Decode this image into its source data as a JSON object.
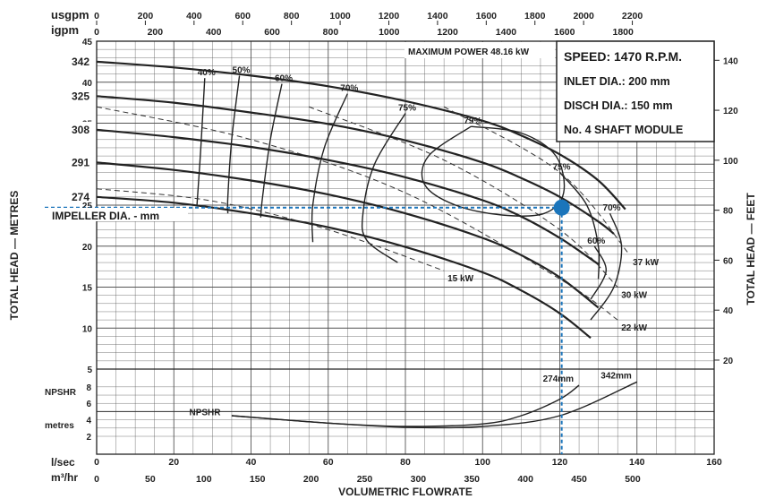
{
  "chart_data": {
    "type": "line",
    "title": "",
    "axes": {
      "x_lsec": {
        "label": "l/sec",
        "ticks": [
          0,
          20,
          40,
          60,
          80,
          100,
          120,
          140,
          160
        ]
      },
      "x_m3hr": {
        "label": "m³/hr",
        "ticks": [
          0,
          50,
          100,
          150,
          200,
          250,
          300,
          350,
          400,
          450,
          500
        ]
      },
      "x_usgpm": {
        "label": "usgpm",
        "ticks": [
          0,
          200,
          400,
          600,
          800,
          1000,
          1200,
          1400,
          1600,
          1800,
          2000,
          2200
        ]
      },
      "x_igpm": {
        "label": "igpm",
        "ticks": [
          0,
          200,
          400,
          600,
          800,
          1000,
          1200,
          1400,
          1600,
          1800
        ]
      },
      "x_title": "VOLUMETRIC FLOWRATE",
      "y_left": {
        "label": "TOTAL HEAD — METRES",
        "ticks": [
          5,
          10,
          15,
          20,
          25,
          30,
          35,
          40,
          45
        ],
        "range": [
          5,
          45
        ]
      },
      "y_right": {
        "label": "TOTAL HEAD — FEET",
        "ticks": [
          20,
          40,
          60,
          80,
          100,
          120,
          140
        ]
      },
      "npshr": {
        "label_top": "NPSHR",
        "label_bottom": "metres",
        "ticks": [
          2,
          4,
          6,
          8
        ]
      }
    },
    "grid": true,
    "info": {
      "speed": "SPEED: 1470 R.P.M.",
      "inlet": "INLET DIA.: 200 mm",
      "disch": "DISCH DIA.: 150 mm",
      "module": "No. 4 SHAFT MODULE",
      "max_power": "MAXIMUM POWER 48.16 kW"
    },
    "impeller_label": "IMPELLER DIA. - mm",
    "head_curves": [
      {
        "name": "342",
        "x": [
          0,
          20,
          40,
          60,
          80,
          100,
          110,
          120,
          130,
          137
        ],
        "y": [
          42.5,
          41.8,
          40.8,
          39.5,
          37.7,
          35.3,
          33.5,
          31.2,
          28.0,
          24.5
        ]
      },
      {
        "name": "325",
        "x": [
          0,
          20,
          40,
          60,
          80,
          100,
          110,
          120,
          130,
          134
        ],
        "y": [
          38.3,
          37.5,
          36.3,
          34.9,
          32.9,
          30.2,
          28.3,
          26.0,
          23.0,
          21.5
        ]
      },
      {
        "name": "308",
        "x": [
          0,
          20,
          40,
          60,
          80,
          100,
          110,
          120,
          130
        ],
        "y": [
          34.2,
          33.3,
          32.1,
          30.5,
          28.4,
          25.6,
          23.6,
          21.0,
          17.8
        ]
      },
      {
        "name": "291",
        "x": [
          0,
          20,
          40,
          60,
          80,
          100,
          110,
          120,
          130
        ],
        "y": [
          30.2,
          29.3,
          28.0,
          26.3,
          24.0,
          21.0,
          18.9,
          16.2,
          12.5
        ]
      },
      {
        "name": "274",
        "x": [
          0,
          20,
          40,
          60,
          80,
          100,
          110,
          120,
          128
        ],
        "y": [
          26.0,
          25.3,
          24.0,
          22.3,
          19.9,
          16.8,
          14.6,
          11.8,
          8.8
        ]
      }
    ],
    "efficiency_contours": [
      {
        "label": "40%",
        "x": [
          28,
          27,
          26
        ],
        "y": [
          40.5,
          32,
          25
        ]
      },
      {
        "label": "50%",
        "x": [
          37,
          35,
          34,
          34
        ],
        "y": [
          40.8,
          33,
          26,
          24
        ]
      },
      {
        "label": "60%",
        "x": [
          48,
          45,
          43,
          42.5
        ],
        "y": [
          39.8,
          33,
          26,
          23.5
        ]
      },
      {
        "label": "70%",
        "x": [
          65,
          59,
          56,
          56
        ],
        "y": [
          38.6,
          32,
          25,
          20.5
        ]
      },
      {
        "label": "75%",
        "x": [
          80,
          72,
          69,
          70,
          78
        ],
        "y": [
          36.2,
          30,
          24,
          20.7,
          18
        ]
      },
      {
        "label": "79%",
        "x": [
          97,
          86,
          85,
          93,
          105,
          116,
          121,
          119,
          110,
          97
        ],
        "y": [
          34.6,
          31,
          27.5,
          25,
          23.8,
          24,
          26.5,
          31,
          33.8,
          34.6
        ]
      },
      {
        "label": "75%",
        "x": [
          120,
          127,
          130,
          130
        ],
        "y": [
          29,
          25,
          20,
          16
        ]
      },
      {
        "label": "70%",
        "x": [
          133,
          136,
          134,
          128
        ],
        "y": [
          24,
          20,
          15,
          11
        ]
      },
      {
        "label": "60%",
        "x": [
          129,
          132,
          128
        ],
        "y": [
          20,
          17,
          13.5
        ]
      }
    ],
    "power_lines": [
      {
        "label": "15 kW",
        "x": [
          0,
          30,
          60,
          90
        ],
        "y": [
          27,
          25.5,
          22,
          17
        ]
      },
      {
        "label": "22 kW",
        "x": [
          0,
          40,
          80,
          120,
          135
        ],
        "y": [
          37,
          33,
          26.5,
          16,
          11
        ]
      },
      {
        "label": "30 kW",
        "x": [
          55,
          90,
          120,
          135
        ],
        "y": [
          37,
          30.5,
          22,
          15
        ]
      },
      {
        "label": "37 kW",
        "x": [
          90,
          120,
          138
        ],
        "y": [
          37,
          29,
          19
        ]
      }
    ],
    "npshr_curves": [
      {
        "name": "274mm",
        "x": [
          35,
          60,
          80,
          100,
          110,
          120,
          125
        ],
        "y": [
          4.5,
          3.6,
          3.2,
          3.5,
          4.5,
          6.5,
          8.2
        ]
      },
      {
        "name": "342mm",
        "x": [
          35,
          60,
          80,
          100,
          120,
          140
        ],
        "y": [
          4.5,
          3.6,
          3.1,
          3.2,
          4.5,
          8.6
        ]
      }
    ],
    "npshr_label": "NPSHR",
    "operating_point": {
      "x": 120.5,
      "y": 24.7,
      "color": "#1b75bb"
    }
  },
  "labels": {
    "usgpm": "usgpm",
    "igpm": "igpm",
    "lsec": "l/sec",
    "m3hr": "m³/hr",
    "npshr_top": "NPSHR",
    "npshr_bottom": "metres",
    "y_left": "TOTAL HEAD — METRES",
    "y_right": "TOTAL HEAD — FEET",
    "x_title": "VOLUMETRIC FLOWRATE"
  }
}
